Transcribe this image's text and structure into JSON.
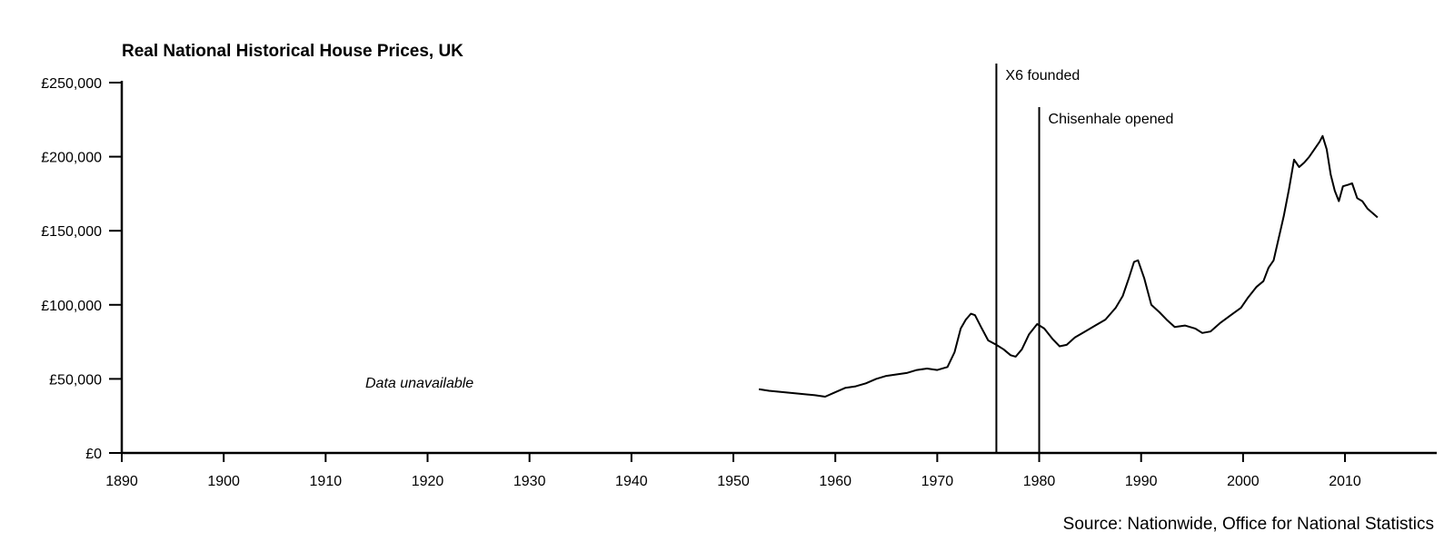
{
  "chart_data": {
    "type": "line",
    "title": "Real National Historical House Prices, UK",
    "xlabel": "",
    "ylabel": "",
    "xlim": [
      1890,
      2019
    ],
    "ylim": [
      0,
      250000
    ],
    "grid": false,
    "x_ticks": [
      1890,
      1900,
      1910,
      1920,
      1930,
      1940,
      1950,
      1960,
      1970,
      1980,
      1990,
      2000,
      2010
    ],
    "x_tick_labels": [
      "1890",
      "1900",
      "1910",
      "1920",
      "1930",
      "1940",
      "1950",
      "1960",
      "1970",
      "1980",
      "1990",
      "2000",
      "2010"
    ],
    "y_ticks": [
      0,
      50000,
      100000,
      150000,
      200000,
      250000
    ],
    "y_tick_labels": [
      "£0",
      "£50,000",
      "£100,000",
      "£150,000",
      "£200,000",
      "£250,000"
    ],
    "series": [
      {
        "x": [
          1952.5,
          1953.5,
          1955,
          1956.5,
          1958,
          1959,
          1960,
          1961,
          1962,
          1963,
          1964,
          1965,
          1966,
          1967,
          1968,
          1969,
          1970,
          1971,
          1971.7,
          1972.3,
          1972.8,
          1973.3,
          1973.7,
          1974.3,
          1975,
          1975.8,
          1976.5,
          1977.2,
          1977.7,
          1978.3,
          1979,
          1979.8,
          1980.5,
          1981.3,
          1982,
          1982.7,
          1983.5,
          1984.5,
          1985.5,
          1986.5,
          1987.5,
          1988.2,
          1988.8,
          1989.3,
          1989.7,
          1990.3,
          1991,
          1991.8,
          1992.5,
          1993.3,
          1994.3,
          1995.3,
          1996,
          1996.8,
          1997.8,
          1998.8,
          1999.8,
          2000.5,
          2001.3,
          2002,
          2002.5,
          2003,
          2003.5,
          2004,
          2004.5,
          2005,
          2005.5,
          2006,
          2006.5,
          2007,
          2007.5,
          2007.8,
          2008.2,
          2008.6,
          2009,
          2009.4,
          2009.8,
          2010.3,
          2010.7,
          2011.2,
          2011.7,
          2012.2,
          2012.7,
          2013.2
        ],
        "values": [
          43000,
          42000,
          41000,
          40000,
          39000,
          38000,
          41000,
          44000,
          45000,
          47000,
          50000,
          52000,
          53000,
          54000,
          56000,
          57000,
          56000,
          58000,
          68000,
          84000,
          90000,
          94000,
          93000,
          85000,
          76000,
          73000,
          70000,
          66000,
          65000,
          70000,
          80000,
          87000,
          84000,
          77000,
          72000,
          73000,
          78000,
          82000,
          86000,
          90000,
          98000,
          106000,
          118000,
          129000,
          130000,
          118000,
          100000,
          95000,
          90000,
          85000,
          86000,
          84000,
          81000,
          82000,
          88000,
          93000,
          98000,
          105000,
          112000,
          116000,
          125000,
          130000,
          145000,
          160000,
          178000,
          198000,
          193000,
          196000,
          200000,
          205000,
          210000,
          214000,
          205000,
          188000,
          177000,
          170000,
          180000,
          181000,
          182000,
          172000,
          170000,
          165000,
          162000,
          159000
        ]
      }
    ],
    "annotations": [
      {
        "x": 1975.8,
        "label": "X6 founded"
      },
      {
        "x": 1980,
        "label": "Chisenhale opened"
      }
    ],
    "note": "Data unavailable",
    "source": "Source: Nationwide, Office for National Statistics"
  }
}
